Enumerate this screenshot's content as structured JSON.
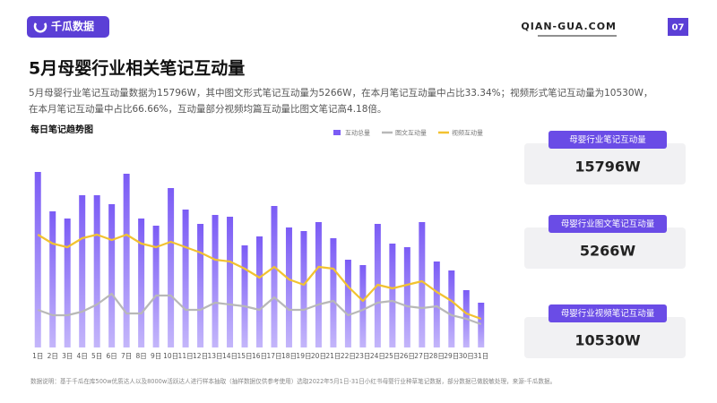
{
  "header": {
    "logo": "千瓜数据",
    "site": "QIAN-GUA.COM",
    "page": "07"
  },
  "title": "5月母婴行业相关笔记互动量",
  "description": [
    "5月母婴行业笔记互动量数据为15796W，其中图文形式笔记互动量为5266W，在本月笔记互动量中占比33.34%；视频形式笔记互动量为10530W，",
    "在本月笔记互动量中占比66.66%，互动量部分视频均篇互动量比图文笔记高4.18倍。"
  ],
  "chart_data": {
    "type": "bar-line",
    "title": "每日笔记趋势图",
    "categories": [
      "1日",
      "2日",
      "3日",
      "4日",
      "5日",
      "6日",
      "7日",
      "8日",
      "9日",
      "10日",
      "11日",
      "12日",
      "13日",
      "14日",
      "15日",
      "16日",
      "17日",
      "18日",
      "19日",
      "20日",
      "21日",
      "22日",
      "23日",
      "24日",
      "25日",
      "26日",
      "27日",
      "28日",
      "29日",
      "30日",
      "31日"
    ],
    "series": [
      {
        "name": "互动总量",
        "type": "bar",
        "color": "#7b5cf5",
        "values": [
          98,
          76,
          72,
          85,
          85,
          80,
          97,
          72,
          68,
          89,
          77,
          69,
          74,
          73,
          57,
          62,
          79,
          67,
          65,
          70,
          61,
          49,
          46,
          69,
          58,
          56,
          70,
          48,
          43,
          32,
          25
        ]
      },
      {
        "name": "图文互动量",
        "type": "line",
        "color": "#b8b8b8",
        "values": [
          21,
          18,
          18,
          20,
          24,
          30,
          19,
          19,
          29,
          29,
          21,
          21,
          25,
          24,
          23,
          21,
          28,
          21,
          21,
          24,
          26,
          18,
          21,
          25,
          26,
          23,
          22,
          23,
          18,
          16,
          13
        ]
      },
      {
        "name": "视频互动量",
        "type": "line",
        "color": "#f2c230",
        "values": [
          63,
          58,
          56,
          61,
          63,
          60,
          63,
          58,
          56,
          59,
          56,
          53,
          49,
          48,
          44,
          39,
          45,
          38,
          35,
          45,
          44,
          34,
          26,
          35,
          33,
          35,
          37,
          31,
          26,
          19,
          16
        ]
      }
    ],
    "ylim": [
      0,
      100
    ],
    "legend": "top-right"
  },
  "cards": [
    {
      "label": "母婴行业笔记互动量",
      "value": "15796W"
    },
    {
      "label": "母婴行业图文笔记互动量",
      "value": "5266W"
    },
    {
      "label": "母婴行业视频笔记互动量",
      "value": "10530W"
    }
  ],
  "footer": "数据说明：基于千瓜在库500w优质达人以及8000w活跃达人进行样本抽取（抽样数据仅供参考使用）选取2022年5月1日-31日小红书母婴行业种草笔记数据，部分数据已做脱敏处理，来源-千瓜数据。"
}
